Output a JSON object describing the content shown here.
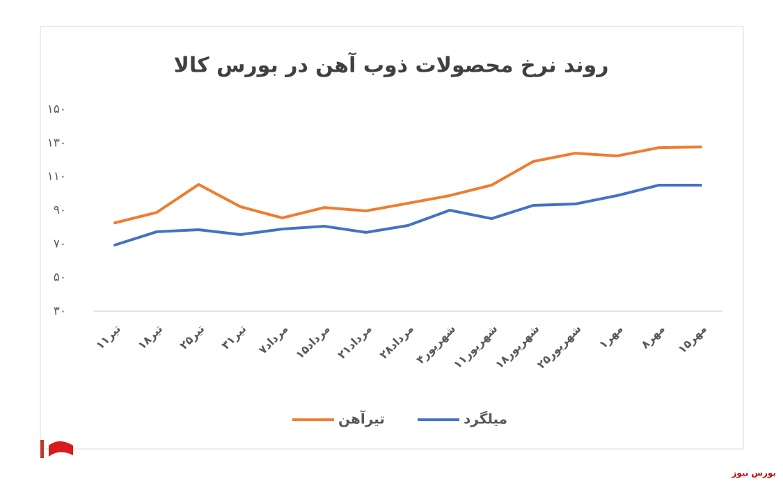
{
  "chart_data": {
    "type": "line",
    "title": "روند نرخ محصولات ذوب آهن در بورس کالا",
    "categories": [
      "۱۱تیر",
      "۱۸تیر",
      "۲۵تیر",
      "۳۱تیر",
      "۷مرداد",
      "۱۵مرداد",
      "۲۱مرداد",
      "۲۸مرداد",
      "۴شهریور",
      "۱۱شهریور",
      "۱۸شهریور",
      "۲۵شهریور",
      "۱مهر",
      "۸مهر",
      "۱۵مهر"
    ],
    "series": [
      {
        "name": "تیرآهن",
        "color": "#ed7d31",
        "values": [
          82.5,
          88.7,
          105.3,
          92.1,
          85.4,
          91.6,
          89.6,
          94.1,
          98.7,
          104.9,
          119,
          123.9,
          122.3,
          127.2,
          127.6
        ]
      },
      {
        "name": "میلگرد",
        "color": "#4472c4",
        "values": [
          69.3,
          77.2,
          78.4,
          75.5,
          78.8,
          80.5,
          76.8,
          80.9,
          90,
          85,
          92.9,
          93.7,
          98.7,
          104.9,
          104.9
        ]
      }
    ],
    "ylim": [
      30,
      150
    ],
    "yticks": [
      {
        "value": 30,
        "label": "۳۰"
      },
      {
        "value": 50,
        "label": "۵۰"
      },
      {
        "value": 70,
        "label": "۷۰"
      },
      {
        "value": 90,
        "label": "۹۰"
      },
      {
        "value": 110,
        "label": "۱۱۰"
      },
      {
        "value": 130,
        "label": "۱۳۰"
      },
      {
        "value": 150,
        "label": "۱۵۰"
      }
    ],
    "grid": false,
    "legend": "bottom"
  },
  "watermark": "بورس نیوز"
}
